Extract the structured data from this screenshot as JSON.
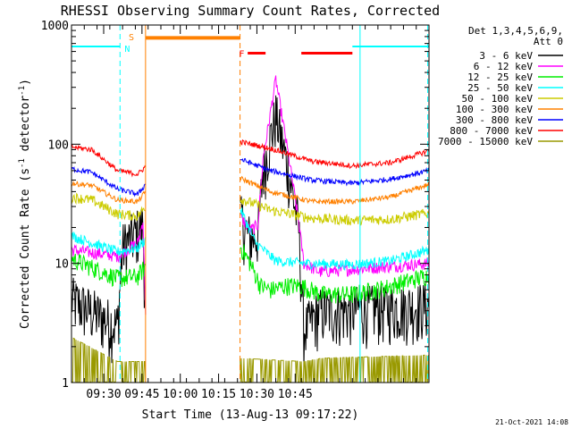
{
  "chart_data": {
    "type": "line",
    "title": "RHESSI Observing Summary Count Rates, Corrected",
    "xlabel": "Start Time (13-Aug-13 09:17:22)",
    "ylabel_parts": [
      "Corrected Count Rate (s",
      "-1",
      " detector",
      "-1",
      ")"
    ],
    "y_log": true,
    "ylim": [
      1,
      1000
    ],
    "y_ticks": [
      {
        "v": 1,
        "label": "1"
      },
      {
        "v": 10,
        "label": "10"
      },
      {
        "v": 100,
        "label": "100"
      },
      {
        "v": 1000,
        "label": "1000"
      }
    ],
    "xlim_min": [
      0,
      140
    ],
    "x_ticks": [
      {
        "v": 12.6,
        "label": "09:30"
      },
      {
        "v": 27.6,
        "label": "09:45"
      },
      {
        "v": 42.6,
        "label": "10:00"
      },
      {
        "v": 57.6,
        "label": "10:15"
      },
      {
        "v": 72.6,
        "label": "10:30"
      },
      {
        "v": 87.6,
        "label": "10:45"
      }
    ],
    "legend_header": [
      "Det 1,3,4,5,6,9,",
      "Att 0"
    ],
    "legend_position": "right",
    "series": [
      {
        "name": "3 - 6 keV",
        "color": "#000000",
        "anchors": [
          [
            0,
            5.0
          ],
          [
            18,
            3.0
          ],
          [
            20,
            14
          ],
          [
            28,
            21
          ],
          [
            29,
            4
          ]
        ],
        "anchors2": [
          [
            66,
            25
          ],
          [
            70,
            16
          ],
          [
            73,
            18
          ],
          [
            75,
            60
          ],
          [
            80,
            180
          ],
          [
            85,
            60
          ],
          [
            89,
            20
          ],
          [
            91,
            2.8
          ],
          [
            97,
            4.0
          ],
          [
            140,
            4.5
          ]
        ],
        "noise": 0.55,
        "spike": null
      },
      {
        "name": "6 - 12 keV",
        "color": "#ff00ff",
        "anchors": [
          [
            0,
            13
          ],
          [
            18,
            11.5
          ],
          [
            26,
            15
          ],
          [
            28,
            23
          ],
          [
            29,
            4
          ]
        ],
        "anchors2": [
          [
            66,
            25
          ],
          [
            70,
            19
          ],
          [
            73,
            21
          ],
          [
            75,
            75
          ],
          [
            80,
            350
          ],
          [
            85,
            80
          ],
          [
            89,
            22
          ],
          [
            91,
            10
          ],
          [
            97,
            8.5
          ],
          [
            140,
            10
          ]
        ],
        "noise": 0.12,
        "spike": null
      },
      {
        "name": "12 - 25 keV",
        "color": "#00ee00",
        "anchors": [
          [
            0,
            11
          ],
          [
            18,
            7.5
          ],
          [
            26,
            7.8
          ],
          [
            29,
            9.5
          ]
        ],
        "anchors2": [
          [
            66,
            14
          ],
          [
            70,
            10
          ],
          [
            74,
            6.5
          ],
          [
            78,
            6.0
          ],
          [
            84,
            6.5
          ],
          [
            90,
            6.5
          ],
          [
            98,
            5.5
          ],
          [
            110,
            5.5
          ],
          [
            122,
            6.2
          ],
          [
            140,
            8.0
          ]
        ],
        "noise": 0.18,
        "spike": null
      },
      {
        "name": "25 - 50 keV",
        "color": "#00ffff",
        "anchors": [
          [
            0,
            17
          ],
          [
            18,
            12.5
          ],
          [
            26,
            13.5
          ],
          [
            29,
            16
          ]
        ],
        "anchors2": [
          [
            66,
            29
          ],
          [
            72,
            15
          ],
          [
            80,
            10.5
          ],
          [
            92,
            10
          ],
          [
            110,
            9.8
          ],
          [
            125,
            10.5
          ],
          [
            140,
            13
          ]
        ],
        "noise": 0.1,
        "spike": null
      },
      {
        "name": "50 - 100 keV",
        "color": "#cccc00",
        "anchors": [
          [
            0,
            36
          ],
          [
            8,
            34
          ],
          [
            18,
            26
          ],
          [
            26,
            25
          ],
          [
            29,
            30
          ]
        ],
        "anchors2": [
          [
            66,
            35
          ],
          [
            78,
            28
          ],
          [
            94,
            24
          ],
          [
            110,
            23
          ],
          [
            125,
            23.5
          ],
          [
            140,
            26.5
          ]
        ],
        "noise": 0.1,
        "spike": null
      },
      {
        "name": "100 - 300 keV",
        "color": "#ff8000",
        "anchors": [
          [
            0,
            47
          ],
          [
            8,
            45
          ],
          [
            18,
            34
          ],
          [
            26,
            33
          ],
          [
            29,
            40
          ]
        ],
        "anchors2": [
          [
            66,
            52
          ],
          [
            78,
            40
          ],
          [
            94,
            33
          ],
          [
            110,
            33
          ],
          [
            125,
            36
          ],
          [
            140,
            46
          ]
        ],
        "noise": 0.05,
        "spike": null
      },
      {
        "name": "300 - 800 keV",
        "color": "#0000ff",
        "anchors": [
          [
            0,
            62
          ],
          [
            8,
            58
          ],
          [
            18,
            42
          ],
          [
            26,
            38
          ],
          [
            29,
            46
          ]
        ],
        "anchors2": [
          [
            66,
            75
          ],
          [
            78,
            60
          ],
          [
            94,
            50
          ],
          [
            110,
            47
          ],
          [
            125,
            51
          ],
          [
            140,
            60
          ]
        ],
        "noise": 0.05,
        "spike": null
      },
      {
        "name": "800 - 7000 keV",
        "color": "#ff0000",
        "anchors": [
          [
            0,
            95
          ],
          [
            8,
            90
          ],
          [
            18,
            60
          ],
          [
            26,
            56
          ],
          [
            29,
            65
          ]
        ],
        "anchors2": [
          [
            66,
            105
          ],
          [
            78,
            92
          ],
          [
            94,
            72
          ],
          [
            110,
            66
          ],
          [
            125,
            70
          ],
          [
            140,
            88
          ]
        ],
        "noise": 0.05,
        "spike": null
      },
      {
        "name": "7000 - 15000 keV",
        "color": "#999900",
        "anchors": [
          [
            0,
            2.4
          ],
          [
            18,
            1.5
          ],
          [
            29,
            1.5
          ]
        ],
        "anchors2": [
          [
            66,
            1.6
          ],
          [
            91,
            1.5
          ],
          [
            98,
            1.6
          ],
          [
            140,
            1.7
          ]
        ],
        "noise": 0.0,
        "spike": null
      }
    ],
    "gap": [
      29,
      66
    ],
    "annotations": {
      "saa_bars": [
        {
          "x0": 0,
          "x1": 19,
          "y": 660,
          "color": "#00ffff"
        },
        {
          "x0": 110,
          "x1": 140,
          "y": 660,
          "color": "#00ffff"
        }
      ],
      "flare_segments": [
        [
          69,
          76
        ],
        [
          90,
          110
        ]
      ],
      "flare_y": 580,
      "shade_bar": {
        "x0": 29,
        "x1": 66,
        "y": 780,
        "color": "#ff8000"
      },
      "vlines": [
        {
          "x": 0,
          "color": "#00ffff",
          "dash": false
        },
        {
          "x": 19,
          "color": "#00ffff",
          "dash": true
        },
        {
          "x": 29,
          "color": "#ff8000",
          "dash": false
        },
        {
          "x": 66,
          "color": "#ff8000",
          "dash": true
        },
        {
          "x": 113,
          "color": "#00ffff",
          "dash": false
        },
        {
          "x": 139.5,
          "color": "#00ffff",
          "dash": true
        }
      ],
      "labels": [
        {
          "text": "N",
          "color": "#00ffff"
        },
        {
          "text": "S",
          "color": "#ff8000"
        },
        {
          "text": "F",
          "color": "#ff0000"
        }
      ]
    },
    "timestamp": "21-Oct-2021 14:08"
  }
}
